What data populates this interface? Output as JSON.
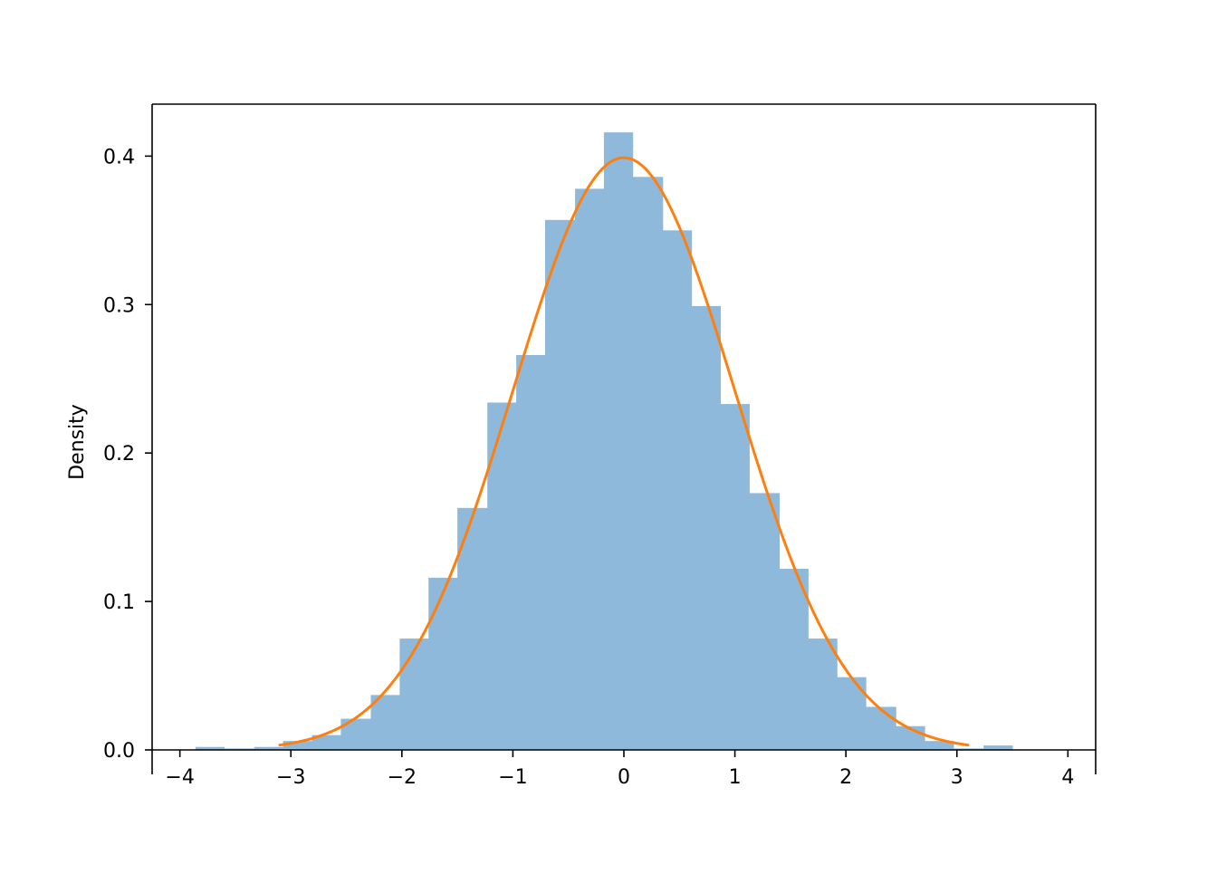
{
  "chart_data": {
    "type": "bar",
    "subtype": "histogram-with-density-curve",
    "title": "",
    "xlabel": "",
    "ylabel": "Density",
    "xlim": [
      -4.25,
      4.25
    ],
    "ylim": [
      0,
      0.435
    ],
    "xticks": [
      -4,
      -3,
      -2,
      -1,
      0,
      1,
      2,
      3,
      4
    ],
    "xtick_labels": [
      "−4",
      "−3",
      "−2",
      "−1",
      "0",
      "1",
      "2",
      "3",
      "4"
    ],
    "yticks": [
      0.0,
      0.1,
      0.2,
      0.3,
      0.4
    ],
    "ytick_labels": [
      "0.0",
      "0.1",
      "0.2",
      "0.3",
      "0.4"
    ],
    "grid": false,
    "histogram": {
      "color": "#8fb9da",
      "bins": [
        {
          "x0": -3.86,
          "x1": -3.6,
          "value": 0.002
        },
        {
          "x0": -3.6,
          "x1": -3.33,
          "value": 0.001
        },
        {
          "x0": -3.33,
          "x1": -3.07,
          "value": 0.002
        },
        {
          "x0": -3.07,
          "x1": -2.81,
          "value": 0.006
        },
        {
          "x0": -2.81,
          "x1": -2.55,
          "value": 0.01
        },
        {
          "x0": -2.55,
          "x1": -2.28,
          "value": 0.021
        },
        {
          "x0": -2.28,
          "x1": -2.02,
          "value": 0.037
        },
        {
          "x0": -2.02,
          "x1": -1.76,
          "value": 0.075
        },
        {
          "x0": -1.76,
          "x1": -1.5,
          "value": 0.116
        },
        {
          "x0": -1.5,
          "x1": -1.23,
          "value": 0.163
        },
        {
          "x0": -1.23,
          "x1": -0.97,
          "value": 0.234
        },
        {
          "x0": -0.97,
          "x1": -0.71,
          "value": 0.266
        },
        {
          "x0": -0.71,
          "x1": -0.44,
          "value": 0.357
        },
        {
          "x0": -0.44,
          "x1": -0.18,
          "value": 0.378
        },
        {
          "x0": -0.18,
          "x1": 0.08,
          "value": 0.416
        },
        {
          "x0": 0.08,
          "x1": 0.35,
          "value": 0.386
        },
        {
          "x0": 0.35,
          "x1": 0.61,
          "value": 0.35
        },
        {
          "x0": 0.61,
          "x1": 0.87,
          "value": 0.299
        },
        {
          "x0": 0.87,
          "x1": 1.13,
          "value": 0.233
        },
        {
          "x0": 1.13,
          "x1": 1.4,
          "value": 0.173
        },
        {
          "x0": 1.4,
          "x1": 1.66,
          "value": 0.122
        },
        {
          "x0": 1.66,
          "x1": 1.92,
          "value": 0.075
        },
        {
          "x0": 1.92,
          "x1": 2.18,
          "value": 0.049
        },
        {
          "x0": 2.18,
          "x1": 2.45,
          "value": 0.029
        },
        {
          "x0": 2.45,
          "x1": 2.71,
          "value": 0.016
        },
        {
          "x0": 2.71,
          "x1": 2.97,
          "value": 0.006
        },
        {
          "x0": 2.97,
          "x1": 3.24,
          "value": 0.001
        },
        {
          "x0": 3.24,
          "x1": 3.5,
          "value": 0.003
        }
      ]
    },
    "curve": {
      "type": "line",
      "kind": "normal-pdf",
      "mean": 0,
      "std": 1,
      "x_range": [
        -3.1,
        3.1
      ],
      "color": "#ff7f0e"
    }
  }
}
